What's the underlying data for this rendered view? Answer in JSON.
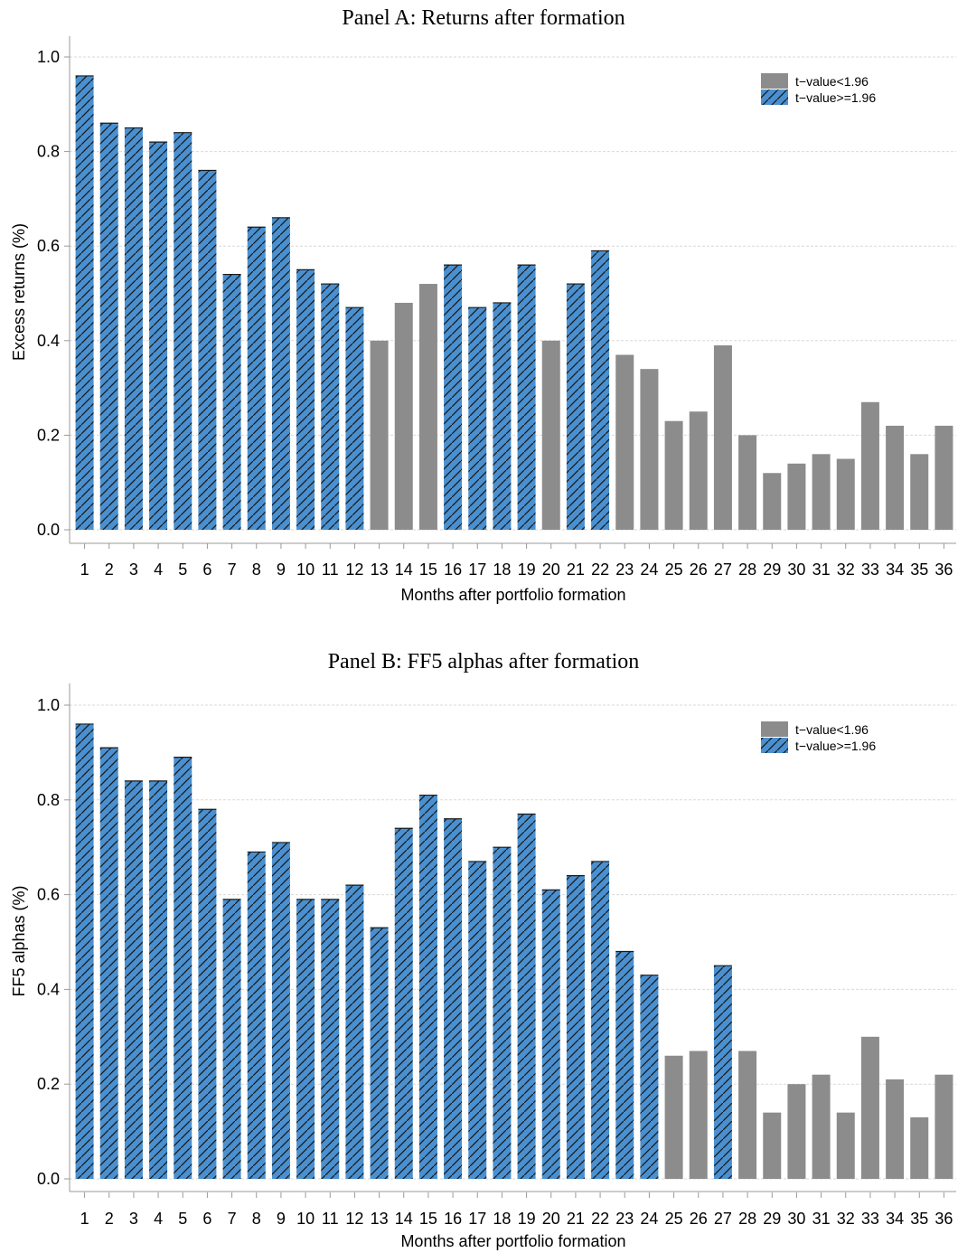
{
  "colors": {
    "insignificant": "#8c8c8c",
    "significant": "#4a90d0",
    "hatch": "#1a1a1a",
    "grid": "#d9d9d9"
  },
  "legend": {
    "insignificant_label": "t−value<1.96",
    "significant_label": "t−value>=1.96",
    "placement": "top-right"
  },
  "chart_data": [
    {
      "type": "bar",
      "title": "Panel A: Returns after formation",
      "xlabel": "Months after portfolio formation",
      "ylabel": "Excess returns (%)",
      "ylim": [
        0,
        1.0
      ],
      "yticks": [
        "0.0",
        "0.2",
        "0.4",
        "0.6",
        "0.8",
        "1.0"
      ],
      "grid": "horizontal",
      "categories": [
        "1",
        "2",
        "3",
        "4",
        "5",
        "6",
        "7",
        "8",
        "9",
        "10",
        "11",
        "12",
        "13",
        "14",
        "15",
        "16",
        "17",
        "18",
        "19",
        "20",
        "21",
        "22",
        "23",
        "24",
        "25",
        "26",
        "27",
        "28",
        "29",
        "30",
        "31",
        "32",
        "33",
        "34",
        "35",
        "36"
      ],
      "values": [
        0.96,
        0.86,
        0.85,
        0.82,
        0.84,
        0.76,
        0.54,
        0.64,
        0.66,
        0.55,
        0.52,
        0.47,
        0.4,
        0.48,
        0.52,
        0.56,
        0.47,
        0.48,
        0.56,
        0.4,
        0.52,
        0.59,
        0.37,
        0.34,
        0.23,
        0.25,
        0.39,
        0.2,
        0.12,
        0.14,
        0.16,
        0.15,
        0.27,
        0.22,
        0.16,
        0.22
      ],
      "significant": [
        true,
        true,
        true,
        true,
        true,
        true,
        true,
        true,
        true,
        true,
        true,
        true,
        false,
        false,
        false,
        true,
        true,
        true,
        true,
        false,
        true,
        true,
        false,
        false,
        false,
        false,
        false,
        false,
        false,
        false,
        false,
        false,
        false,
        false,
        false,
        false
      ]
    },
    {
      "type": "bar",
      "title": "Panel B: FF5 alphas after formation",
      "xlabel": "Months after portfolio formation",
      "ylabel": "FF5 alphas (%)",
      "ylim": [
        0,
        1.0
      ],
      "yticks": [
        "0.0",
        "0.2",
        "0.4",
        "0.6",
        "0.8",
        "1.0"
      ],
      "grid": "horizontal",
      "categories": [
        "1",
        "2",
        "3",
        "4",
        "5",
        "6",
        "7",
        "8",
        "9",
        "10",
        "11",
        "12",
        "13",
        "14",
        "15",
        "16",
        "17",
        "18",
        "19",
        "20",
        "21",
        "22",
        "23",
        "24",
        "25",
        "26",
        "27",
        "28",
        "29",
        "30",
        "31",
        "32",
        "33",
        "34",
        "35",
        "36"
      ],
      "values": [
        0.96,
        0.91,
        0.84,
        0.84,
        0.89,
        0.78,
        0.59,
        0.69,
        0.71,
        0.59,
        0.59,
        0.62,
        0.53,
        0.74,
        0.81,
        0.76,
        0.67,
        0.7,
        0.77,
        0.61,
        0.64,
        0.67,
        0.48,
        0.43,
        0.26,
        0.27,
        0.45,
        0.27,
        0.14,
        0.2,
        0.22,
        0.14,
        0.3,
        0.21,
        0.13,
        0.22
      ],
      "significant": [
        true,
        true,
        true,
        true,
        true,
        true,
        true,
        true,
        true,
        true,
        true,
        true,
        true,
        true,
        true,
        true,
        true,
        true,
        true,
        true,
        true,
        true,
        true,
        true,
        false,
        false,
        true,
        false,
        false,
        false,
        false,
        false,
        false,
        false,
        false,
        false
      ]
    }
  ]
}
